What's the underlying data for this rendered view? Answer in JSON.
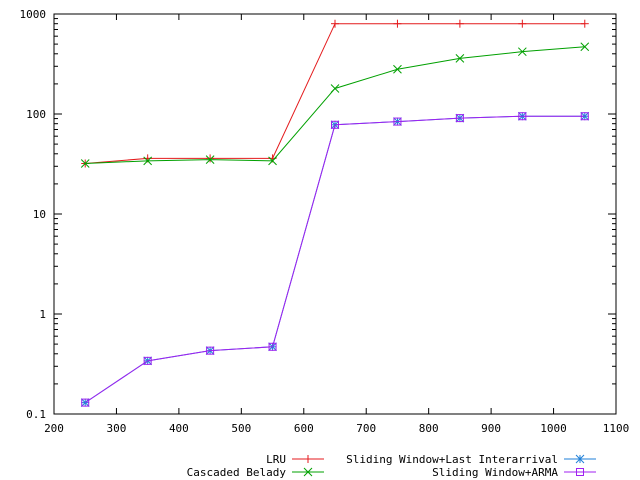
{
  "chart_data": {
    "type": "line",
    "title": "",
    "xlabel": "",
    "ylabel": "",
    "xlim": [
      200,
      1100
    ],
    "ylim": [
      0.1,
      1000
    ],
    "yscale": "log",
    "grid": false,
    "legend_position": "bottom",
    "x_ticks": [
      200,
      300,
      400,
      500,
      600,
      700,
      800,
      900,
      1000,
      1100
    ],
    "x_tick_labels": [
      "200",
      "300",
      "400",
      "500",
      "600",
      "700",
      "800",
      "900",
      "1000",
      "1100"
    ],
    "y_ticks": [
      0.1,
      1,
      10,
      100,
      1000
    ],
    "y_tick_labels": [
      "0.1",
      "1",
      "10",
      "100",
      "1000"
    ],
    "x": [
      250,
      350,
      450,
      550,
      650,
      750,
      850,
      950,
      1050
    ],
    "series": [
      {
        "name": "LRU",
        "color": "#e41a1c",
        "marker": "plus",
        "values": [
          32,
          36,
          36,
          36,
          800,
          800,
          800,
          800,
          800
        ]
      },
      {
        "name": "Cascaded Belady",
        "color": "#00a000",
        "marker": "cross",
        "values": [
          32,
          34,
          35,
          34,
          180,
          280,
          360,
          420,
          470
        ]
      },
      {
        "name": "Sliding Window+Last Interarrival",
        "color": "#1e7fd8",
        "marker": "star",
        "values": [
          0.13,
          0.34,
          0.43,
          0.47,
          78,
          84,
          91,
          95,
          95
        ]
      },
      {
        "name": "Sliding Window+ARMA",
        "color": "#a020f0",
        "marker": "square",
        "values": [
          0.13,
          0.34,
          0.43,
          0.47,
          78,
          84,
          91,
          95,
          95
        ]
      }
    ]
  }
}
